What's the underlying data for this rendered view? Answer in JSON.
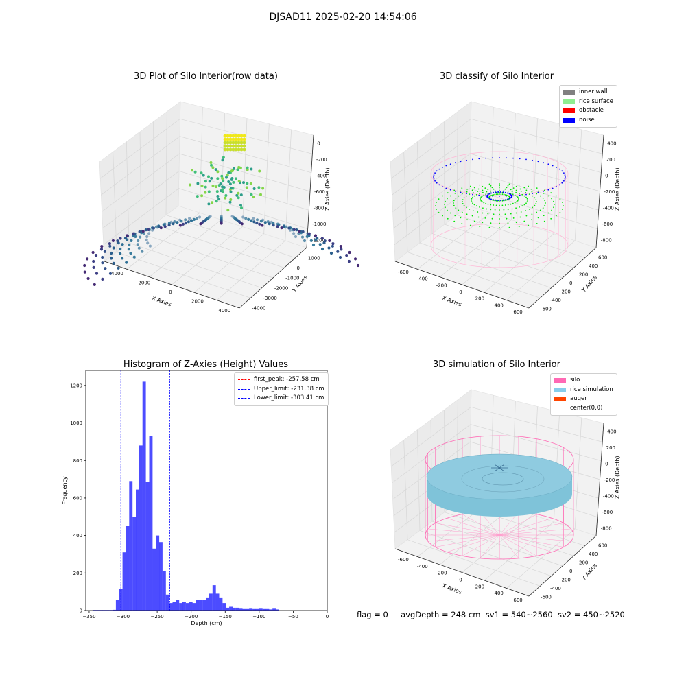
{
  "suptitle": "DJSAD11 2025-02-20 14:54:06",
  "panels": {
    "raw": {
      "title": "3D Plot of Silo Interior(row data)",
      "xlabel": "X Axies",
      "ylabel": "Y Axies",
      "zlabel": "Z Axies (Depth)",
      "xticks": [
        "-4000",
        "-2000",
        "0",
        "2000",
        "4000"
      ],
      "yticks": [
        "1000",
        "0",
        "-1000",
        "-2000",
        "-3000",
        "-4000"
      ],
      "zticks": [
        "0",
        "-200",
        "-400",
        "-600",
        "-800",
        "-1000",
        "-1200"
      ]
    },
    "classify": {
      "title": "3D classify of Silo Interior",
      "xlabel": "X Axies",
      "ylabel": "Y Axies",
      "zlabel": "Z Axies (Depth)",
      "xticks": [
        "-600",
        "-400",
        "-200",
        "0",
        "200",
        "400",
        "600"
      ],
      "yticks": [
        "600",
        "400",
        "200",
        "0",
        "-200",
        "-400",
        "-600"
      ],
      "zticks": [
        "400",
        "200",
        "0",
        "-200",
        "-400",
        "-600",
        "-800"
      ],
      "legend": [
        {
          "label": "inner wall",
          "color": "#808080"
        },
        {
          "label": "rice surface",
          "color": "#90ee90"
        },
        {
          "label": "obstacle",
          "color": "#ff0000"
        },
        {
          "label": "noise",
          "color": "#0000ff"
        }
      ]
    },
    "simulation": {
      "title": "3D simulation of Silo Interior",
      "xlabel": "X Axies",
      "ylabel": "Y Axies",
      "zlabel": "Z Axies (Depth)",
      "xticks": [
        "-600",
        "-400",
        "-200",
        "0",
        "200",
        "400",
        "600"
      ],
      "yticks": [
        "600",
        "400",
        "200",
        "0",
        "-200",
        "-400",
        "-600"
      ],
      "zticks": [
        "400",
        "200",
        "0",
        "-200",
        "-400",
        "-600",
        "-800"
      ],
      "legend": [
        {
          "label": "silo",
          "color": "#ff69b4"
        },
        {
          "label": "rice simulation",
          "color": "#87ceeb"
        },
        {
          "label": "auger",
          "color": "#ff4500"
        },
        {
          "label": "center(0,0)",
          "color": ""
        }
      ]
    }
  },
  "chart_data": {
    "type": "bar",
    "title": "Histogram of Z-Axies (Height) Values",
    "xlabel": "Depth (cm)",
    "ylabel": "Frequency",
    "xlim": [
      -355,
      0
    ],
    "ylim": [
      0,
      1280
    ],
    "xticks": [
      -350,
      -300,
      -250,
      -200,
      -150,
      -100,
      -50,
      0
    ],
    "yticks": [
      0,
      200,
      400,
      600,
      800,
      1000,
      1200
    ],
    "bar_color": "#0000ff",
    "bin_width": 4.9,
    "bins": [
      {
        "x": -342.6,
        "v": 3
      },
      {
        "x": -337.7,
        "v": 3
      },
      {
        "x": -332.8,
        "v": 3
      },
      {
        "x": -327.9,
        "v": 3
      },
      {
        "x": -323.0,
        "v": 3
      },
      {
        "x": -318.1,
        "v": 3
      },
      {
        "x": -313.2,
        "v": 4
      },
      {
        "x": -308.3,
        "v": 55
      },
      {
        "x": -303.4,
        "v": 115
      },
      {
        "x": -298.5,
        "v": 310
      },
      {
        "x": -293.6,
        "v": 450
      },
      {
        "x": -288.7,
        "v": 690
      },
      {
        "x": -283.8,
        "v": 500
      },
      {
        "x": -278.9,
        "v": 645
      },
      {
        "x": -274.0,
        "v": 880
      },
      {
        "x": -269.1,
        "v": 1220
      },
      {
        "x": -264.2,
        "v": 685
      },
      {
        "x": -259.3,
        "v": 930
      },
      {
        "x": -254.4,
        "v": 330
      },
      {
        "x": -249.5,
        "v": 400
      },
      {
        "x": -244.6,
        "v": 365
      },
      {
        "x": -239.7,
        "v": 210
      },
      {
        "x": -234.8,
        "v": 85
      },
      {
        "x": -229.9,
        "v": 40
      },
      {
        "x": -225.0,
        "v": 45
      },
      {
        "x": -220.1,
        "v": 55
      },
      {
        "x": -215.2,
        "v": 40
      },
      {
        "x": -210.3,
        "v": 45
      },
      {
        "x": -205.4,
        "v": 40
      },
      {
        "x": -200.5,
        "v": 45
      },
      {
        "x": -195.6,
        "v": 40
      },
      {
        "x": -190.7,
        "v": 55
      },
      {
        "x": -185.8,
        "v": 55
      },
      {
        "x": -180.9,
        "v": 55
      },
      {
        "x": -176.0,
        "v": 70
      },
      {
        "x": -171.1,
        "v": 90
      },
      {
        "x": -166.2,
        "v": 135
      },
      {
        "x": -161.3,
        "v": 90
      },
      {
        "x": -156.4,
        "v": 70
      },
      {
        "x": -151.5,
        "v": 40
      },
      {
        "x": -146.6,
        "v": 15
      },
      {
        "x": -141.7,
        "v": 20
      },
      {
        "x": -136.8,
        "v": 15
      },
      {
        "x": -131.9,
        "v": 15
      },
      {
        "x": -127.0,
        "v": 10
      },
      {
        "x": -122.1,
        "v": 8
      },
      {
        "x": -117.2,
        "v": 8
      },
      {
        "x": -112.3,
        "v": 10
      },
      {
        "x": -107.4,
        "v": 8
      },
      {
        "x": -102.5,
        "v": 8
      },
      {
        "x": -97.6,
        "v": 10
      },
      {
        "x": -92.7,
        "v": 8
      },
      {
        "x": -87.8,
        "v": 8
      },
      {
        "x": -82.9,
        "v": 6
      },
      {
        "x": -78.0,
        "v": 10
      },
      {
        "x": -73.1,
        "v": 6
      }
    ],
    "vlines": [
      {
        "label": "first_peak: -257.58 cm",
        "x": -257.58,
        "color": "#ff0000"
      },
      {
        "label": "Upper_limit: -231.38 cm",
        "x": -231.38,
        "color": "#0000ff"
      },
      {
        "label": "Lower_limit: -303.41 cm",
        "x": -303.41,
        "color": "#0000ff"
      }
    ],
    "legend_position": "upper right"
  },
  "status": {
    "flag": "flag = 0",
    "avg": "avgDepth = 248 cm",
    "sv1": "sv1 = 540~2560",
    "sv2": "sv2 = 450~2520"
  }
}
